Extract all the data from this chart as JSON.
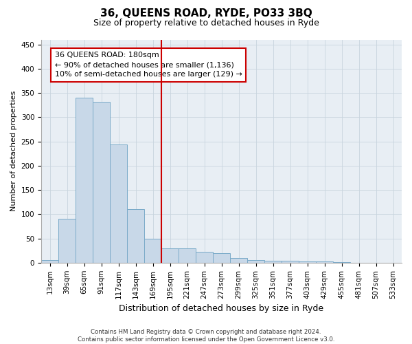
{
  "title1": "36, QUEENS ROAD, RYDE, PO33 3BQ",
  "title2": "Size of property relative to detached houses in Ryde",
  "xlabel": "Distribution of detached houses by size in Ryde",
  "ylabel": "Number of detached properties",
  "categories": [
    "13sqm",
    "39sqm",
    "65sqm",
    "91sqm",
    "117sqm",
    "143sqm",
    "169sqm",
    "195sqm",
    "221sqm",
    "247sqm",
    "273sqm",
    "299sqm",
    "325sqm",
    "351sqm",
    "377sqm",
    "403sqm",
    "429sqm",
    "455sqm",
    "481sqm",
    "507sqm",
    "533sqm"
  ],
  "values": [
    5,
    90,
    340,
    332,
    243,
    110,
    50,
    30,
    30,
    23,
    19,
    9,
    5,
    4,
    4,
    3,
    3,
    1,
    0,
    0,
    0
  ],
  "bar_color": "#c8d8e8",
  "bar_edge_color": "#7aaac8",
  "vline_color": "#cc0000",
  "annotation_text": "36 QUEENS ROAD: 180sqm\n← 90% of detached houses are smaller (1,136)\n10% of semi-detached houses are larger (129) →",
  "annotation_box_color": "#ffffff",
  "annotation_box_edge_color": "#cc0000",
  "ylim": [
    0,
    460
  ],
  "yticks": [
    0,
    50,
    100,
    150,
    200,
    250,
    300,
    350,
    400,
    450
  ],
  "footnote": "Contains HM Land Registry data © Crown copyright and database right 2024.\nContains public sector information licensed under the Open Government Licence v3.0.",
  "bg_color": "#e8eef4",
  "fig_color": "#ffffff",
  "title1_fontsize": 11,
  "title2_fontsize": 9,
  "ylabel_fontsize": 8,
  "xlabel_fontsize": 9,
  "tick_fontsize": 7.5,
  "annot_fontsize": 8
}
